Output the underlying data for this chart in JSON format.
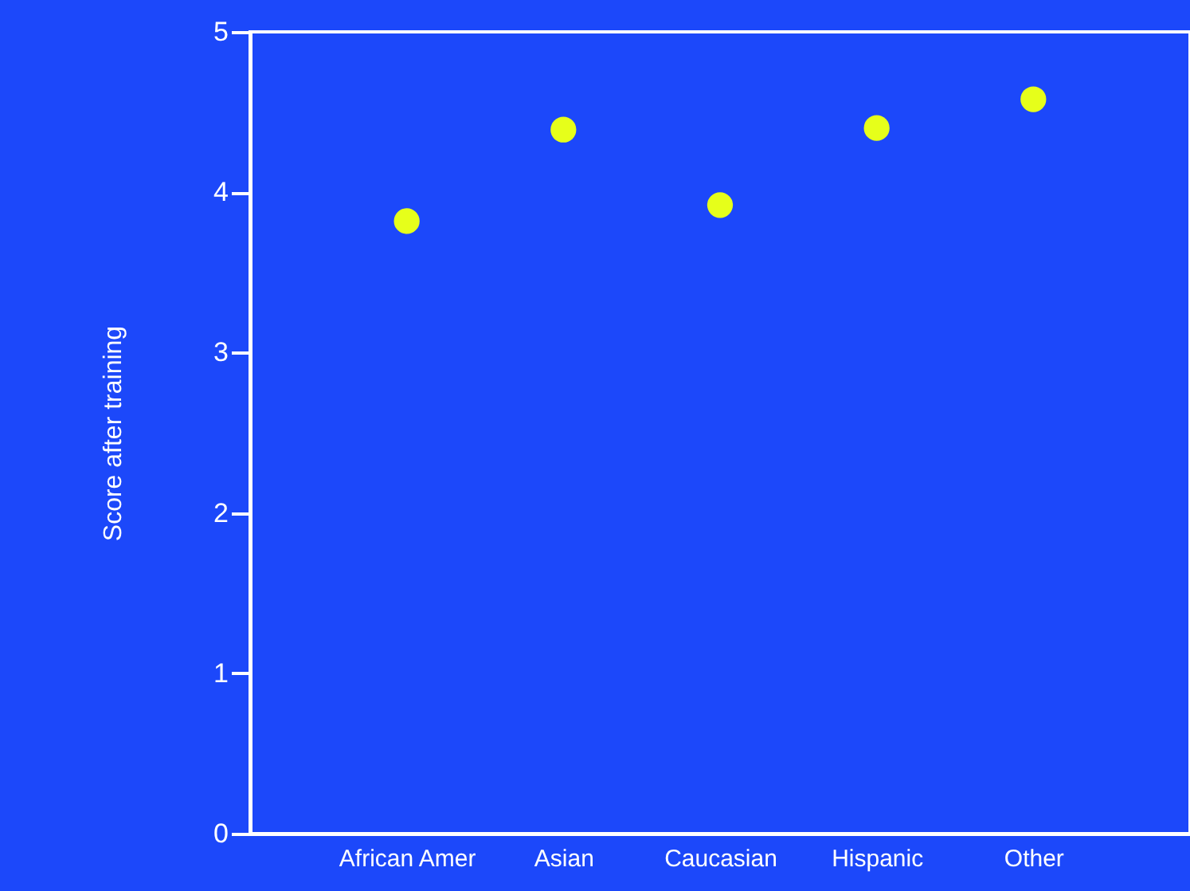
{
  "chart_data": {
    "type": "scatter",
    "ylabel": "Score after training",
    "categories": [
      "African Amer",
      "Asian",
      "Caucasian",
      "Hispanic",
      "Other"
    ],
    "series": [
      {
        "color": "#e6ff1a",
        "values": [
          3.82,
          4.39,
          3.92,
          4.4,
          4.58
        ]
      }
    ],
    "ylim": [
      0,
      5
    ],
    "yticks": [
      0,
      1,
      2,
      3,
      4,
      5
    ],
    "marker": "circle",
    "grid": false
  }
}
